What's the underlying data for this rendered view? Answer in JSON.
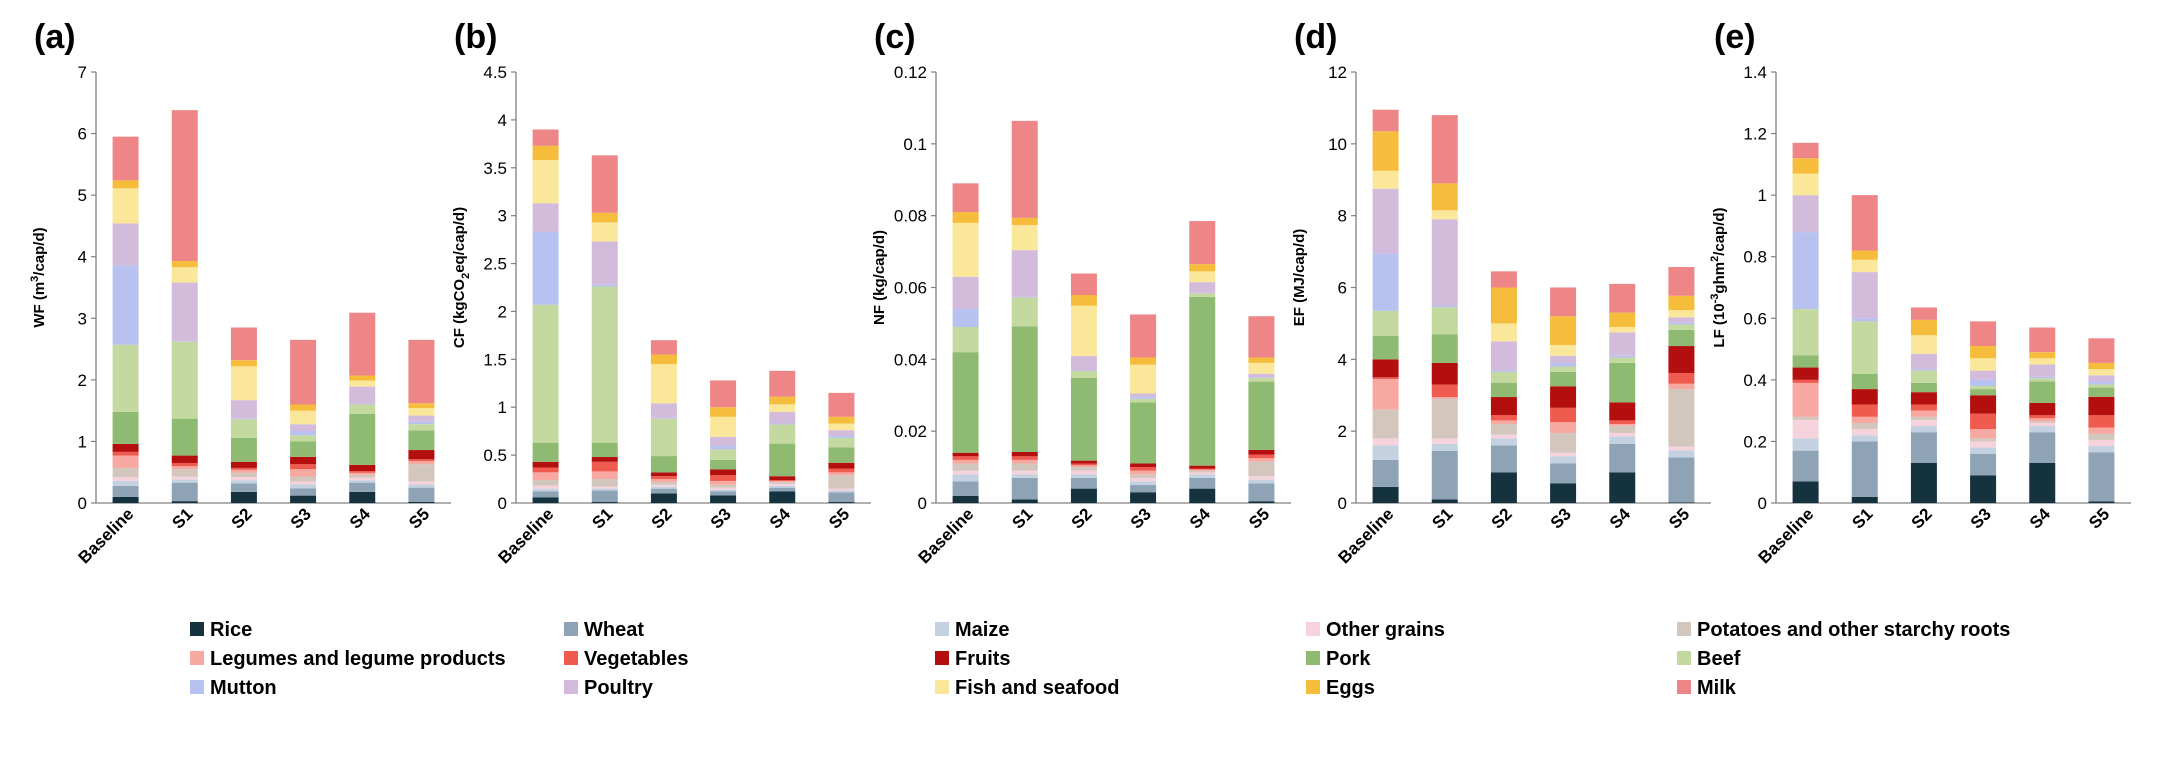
{
  "chart_data": {
    "type": "stacked-bar",
    "categories_order": [
      "Rice",
      "Wheat",
      "Maize",
      "Other grains",
      "Potatoes and other starchy roots",
      "Legumes and legume products",
      "Vegetables",
      "Fruits",
      "Pork",
      "Beef",
      "Mutton",
      "Poultry",
      "Fish and seafood",
      "Eggs",
      "Milk"
    ],
    "colors": {
      "Rice": "#15323f",
      "Wheat": "#8ea3b5",
      "Maize": "#c3d1e0",
      "Other grains": "#f6d3dc",
      "Potatoes and other starchy roots": "#d2c6bd",
      "Legumes and legume products": "#f7a8a1",
      "Vegetables": "#ef5b4f",
      "Fruits": "#b40f0f",
      "Pork": "#8fba72",
      "Beef": "#c4d9a0",
      "Mutton": "#b8c2f0",
      "Poultry": "#d3bbdb",
      "Fish and seafood": "#fbe79a",
      "Eggs": "#f6bd3c",
      "Milk": "#ee8587"
    },
    "legend": {
      "items": [
        "Rice",
        "Wheat",
        "Maize",
        "Other grains",
        "Potatoes and other starchy roots",
        "Legumes and legume products",
        "Vegetables",
        "Fruits",
        "Pork",
        "Beef",
        "Mutton",
        "Poultry",
        "Fish and seafood",
        "Eggs",
        "Milk"
      ],
      "placement": "bottom",
      "columns": 5
    },
    "panels": [
      {
        "letter": "(a)",
        "ylabel_main": "WF (m",
        "ylabel_sup": "3",
        "ylabel_tail": "/cap/d)",
        "ylim": [
          0,
          7
        ],
        "yticks": [
          "0",
          "1",
          "2",
          "3",
          "4",
          "5",
          "6",
          "7"
        ],
        "x": [
          "Baseline",
          "S1",
          "S2",
          "S3",
          "S4",
          "S5"
        ],
        "series": {
          "Rice": [
            0.1,
            0.03,
            0.18,
            0.12,
            0.18,
            0.02
          ],
          "Wheat": [
            0.18,
            0.3,
            0.14,
            0.12,
            0.15,
            0.23
          ],
          "Maize": [
            0.08,
            0.05,
            0.05,
            0.06,
            0.04,
            0.05
          ],
          "Other grains": [
            0.06,
            0.05,
            0.05,
            0.05,
            0.04,
            0.05
          ],
          "Potatoes and other starchy roots": [
            0.15,
            0.12,
            0.07,
            0.08,
            0.05,
            0.28
          ],
          "Legumes and legume products": [
            0.2,
            0.05,
            0.05,
            0.12,
            0.03,
            0.05
          ],
          "Vegetables": [
            0.06,
            0.05,
            0.03,
            0.08,
            0.03,
            0.03
          ],
          "Fruits": [
            0.13,
            0.12,
            0.1,
            0.12,
            0.1,
            0.15
          ],
          "Pork": [
            0.52,
            0.6,
            0.39,
            0.25,
            0.83,
            0.32
          ],
          "Beef": [
            1.09,
            1.25,
            0.3,
            0.1,
            0.15,
            0.1
          ],
          "Mutton": [
            1.29,
            0.01,
            0.01,
            0.07,
            0.01,
            0.04
          ],
          "Poultry": [
            0.68,
            0.95,
            0.3,
            0.11,
            0.28,
            0.1
          ],
          "Fish and seafood": [
            0.57,
            0.25,
            0.55,
            0.22,
            0.1,
            0.12
          ],
          "Eggs": [
            0.13,
            0.1,
            0.1,
            0.1,
            0.08,
            0.08
          ],
          "Milk": [
            0.71,
            2.45,
            0.53,
            1.05,
            1.02,
            1.03
          ]
        }
      },
      {
        "letter": "(b)",
        "ylabel_main": "CF (kgCO",
        "ylabel_sub": "2",
        "ylabel_tail": "eq/cap/d)",
        "ylim": [
          0,
          4.5
        ],
        "yticks": [
          "0",
          "0.5",
          "1",
          "1.5",
          "2",
          "2.5",
          "3",
          "3.5",
          "4",
          "4.5"
        ],
        "x": [
          "Baseline",
          "S1",
          "S2",
          "S3",
          "S4",
          "S5"
        ],
        "series": {
          "Rice": [
            0.06,
            0.01,
            0.1,
            0.08,
            0.12,
            0.01
          ],
          "Wheat": [
            0.06,
            0.12,
            0.05,
            0.04,
            0.04,
            0.1
          ],
          "Maize": [
            0.03,
            0.02,
            0.02,
            0.02,
            0.02,
            0.02
          ],
          "Other grains": [
            0.03,
            0.02,
            0.02,
            0.02,
            0.02,
            0.02
          ],
          "Potatoes and other starchy roots": [
            0.06,
            0.08,
            0.03,
            0.03,
            0.02,
            0.14
          ],
          "Legumes and legume products": [
            0.08,
            0.08,
            0.03,
            0.04,
            0.01,
            0.03
          ],
          "Vegetables": [
            0.05,
            0.1,
            0.03,
            0.06,
            0.01,
            0.04
          ],
          "Fruits": [
            0.06,
            0.05,
            0.04,
            0.06,
            0.04,
            0.06
          ],
          "Pork": [
            0.2,
            0.15,
            0.17,
            0.1,
            0.34,
            0.16
          ],
          "Beef": [
            1.44,
            1.63,
            0.39,
            0.11,
            0.2,
            0.1
          ],
          "Mutton": [
            0.76,
            0.02,
            0.01,
            0.04,
            0.01,
            0.02
          ],
          "Poultry": [
            0.3,
            0.45,
            0.15,
            0.09,
            0.12,
            0.06
          ],
          "Fish and seafood": [
            0.45,
            0.2,
            0.41,
            0.21,
            0.08,
            0.07
          ],
          "Eggs": [
            0.15,
            0.1,
            0.1,
            0.1,
            0.08,
            0.07
          ],
          "Milk": [
            0.17,
            0.6,
            0.15,
            0.28,
            0.27,
            0.25
          ]
        }
      },
      {
        "letter": "(c)",
        "ylabel_main": "NF (kg/cap/d)",
        "ylim": [
          0,
          0.12
        ],
        "yticks": [
          "0",
          "0.02",
          "0.04",
          "0.06",
          "0.08",
          "0.1",
          "0.12"
        ],
        "x": [
          "Baseline",
          "S1",
          "S2",
          "S3",
          "S4",
          "S5"
        ],
        "series": {
          "Rice": [
            0.002,
            0.001,
            0.004,
            0.003,
            0.004,
            0.0005
          ],
          "Wheat": [
            0.004,
            0.006,
            0.003,
            0.002,
            0.003,
            0.005
          ],
          "Maize": [
            0.002,
            0.001,
            0.001,
            0.001,
            0.001,
            0.001
          ],
          "Other grains": [
            0.001,
            0.001,
            0.001,
            0.001,
            0.0005,
            0.001
          ],
          "Potatoes and other starchy roots": [
            0.002,
            0.002,
            0.001,
            0.001,
            0.0005,
            0.004
          ],
          "Legumes and legume products": [
            0.001,
            0.001,
            0.0005,
            0.001,
            0.0003,
            0.001
          ],
          "Vegetables": [
            0.001,
            0.001,
            0.0005,
            0.001,
            0.0003,
            0.001
          ],
          "Fruits": [
            0.001,
            0.0012,
            0.0008,
            0.001,
            0.0008,
            0.0013
          ],
          "Pork": [
            0.028,
            0.035,
            0.023,
            0.017,
            0.047,
            0.019
          ],
          "Beef": [
            0.007,
            0.008,
            0.002,
            0.001,
            0.001,
            0.001
          ],
          "Mutton": [
            0.005,
            0.0002,
            0.0001,
            0.0005,
            0.0001,
            0.0002
          ],
          "Poultry": [
            0.009,
            0.013,
            0.004,
            0.001,
            0.003,
            0.001
          ],
          "Fish and seafood": [
            0.015,
            0.007,
            0.014,
            0.008,
            0.003,
            0.003
          ],
          "Eggs": [
            0.003,
            0.002,
            0.003,
            0.002,
            0.002,
            0.0015
          ],
          "Milk": [
            0.008,
            0.027,
            0.006,
            0.012,
            0.012,
            0.0115
          ]
        }
      },
      {
        "letter": "(d)",
        "ylabel_main": "EF (MJ/cap/d)",
        "ylim": [
          0,
          12
        ],
        "yticks": [
          "0",
          "2",
          "4",
          "6",
          "8",
          "10",
          "12"
        ],
        "x": [
          "Baseline",
          "S1",
          "S2",
          "S3",
          "S4",
          "S5"
        ],
        "series": {
          "Rice": [
            0.45,
            0.1,
            0.85,
            0.55,
            0.85,
            0.02
          ],
          "Wheat": [
            0.75,
            1.35,
            0.75,
            0.55,
            0.8,
            1.25
          ],
          "Maize": [
            0.4,
            0.2,
            0.2,
            0.2,
            0.2,
            0.2
          ],
          "Other grains": [
            0.2,
            0.15,
            0.1,
            0.1,
            0.1,
            0.1
          ],
          "Potatoes and other starchy roots": [
            0.8,
            1.1,
            0.3,
            0.55,
            0.2,
            1.6
          ],
          "Legumes and legume products": [
            0.85,
            0.05,
            0.1,
            0.3,
            0.05,
            0.15
          ],
          "Vegetables": [
            0.05,
            0.35,
            0.15,
            0.4,
            0.1,
            0.3
          ],
          "Fruits": [
            0.5,
            0.6,
            0.5,
            0.6,
            0.5,
            0.75
          ],
          "Pork": [
            0.65,
            0.8,
            0.4,
            0.4,
            1.1,
            0.45
          ],
          "Beef": [
            0.7,
            0.75,
            0.3,
            0.15,
            0.15,
            0.15
          ],
          "Mutton": [
            1.6,
            0.05,
            0.05,
            0.1,
            0.05,
            0.05
          ],
          "Poultry": [
            1.8,
            2.4,
            0.8,
            0.2,
            0.65,
            0.15
          ],
          "Fish and seafood": [
            0.5,
            0.25,
            0.5,
            0.3,
            0.15,
            0.2
          ],
          "Eggs": [
            1.1,
            0.75,
            1.0,
            0.8,
            0.4,
            0.4
          ],
          "Milk": [
            0.6,
            1.9,
            0.45,
            0.8,
            0.8,
            0.8
          ]
        }
      },
      {
        "letter": "(e)",
        "ylabel_main": "LF (10",
        "ylabel_sup": "-3",
        "ylabel_mid": "ghm",
        "ylabel_sup2": "2",
        "ylabel_tail": "/cap/d)",
        "ylim": [
          0,
          1.4
        ],
        "yticks": [
          "0",
          "0.2",
          "0.4",
          "0.6",
          "0.8",
          "1",
          "1.2",
          "1.4"
        ],
        "x": [
          "Baseline",
          "S1",
          "S2",
          "S3",
          "S4",
          "S5"
        ],
        "series": {
          "Rice": [
            0.07,
            0.02,
            0.13,
            0.09,
            0.13,
            0.005
          ],
          "Wheat": [
            0.1,
            0.18,
            0.1,
            0.07,
            0.1,
            0.16
          ],
          "Maize": [
            0.04,
            0.02,
            0.02,
            0.02,
            0.02,
            0.02
          ],
          "Other grains": [
            0.06,
            0.02,
            0.02,
            0.02,
            0.01,
            0.02
          ],
          "Potatoes and other starchy roots": [
            0.01,
            0.02,
            0.01,
            0.01,
            0.005,
            0.02
          ],
          "Legumes and legume products": [
            0.11,
            0.02,
            0.02,
            0.03,
            0.01,
            0.02
          ],
          "Vegetables": [
            0.01,
            0.04,
            0.02,
            0.05,
            0.01,
            0.04
          ],
          "Fruits": [
            0.04,
            0.05,
            0.04,
            0.06,
            0.04,
            0.06
          ],
          "Pork": [
            0.04,
            0.05,
            0.03,
            0.02,
            0.07,
            0.03
          ],
          "Beef": [
            0.15,
            0.17,
            0.04,
            0.01,
            0.01,
            0.01
          ],
          "Mutton": [
            0.25,
            0.01,
            0.005,
            0.02,
            0.005,
            0.01
          ],
          "Poultry": [
            0.12,
            0.15,
            0.05,
            0.03,
            0.04,
            0.02
          ],
          "Fish and seafood": [
            0.07,
            0.04,
            0.06,
            0.04,
            0.02,
            0.02
          ],
          "Eggs": [
            0.05,
            0.03,
            0.05,
            0.04,
            0.02,
            0.02
          ],
          "Milk": [
            0.05,
            0.18,
            0.04,
            0.08,
            0.08,
            0.08
          ]
        }
      }
    ]
  }
}
